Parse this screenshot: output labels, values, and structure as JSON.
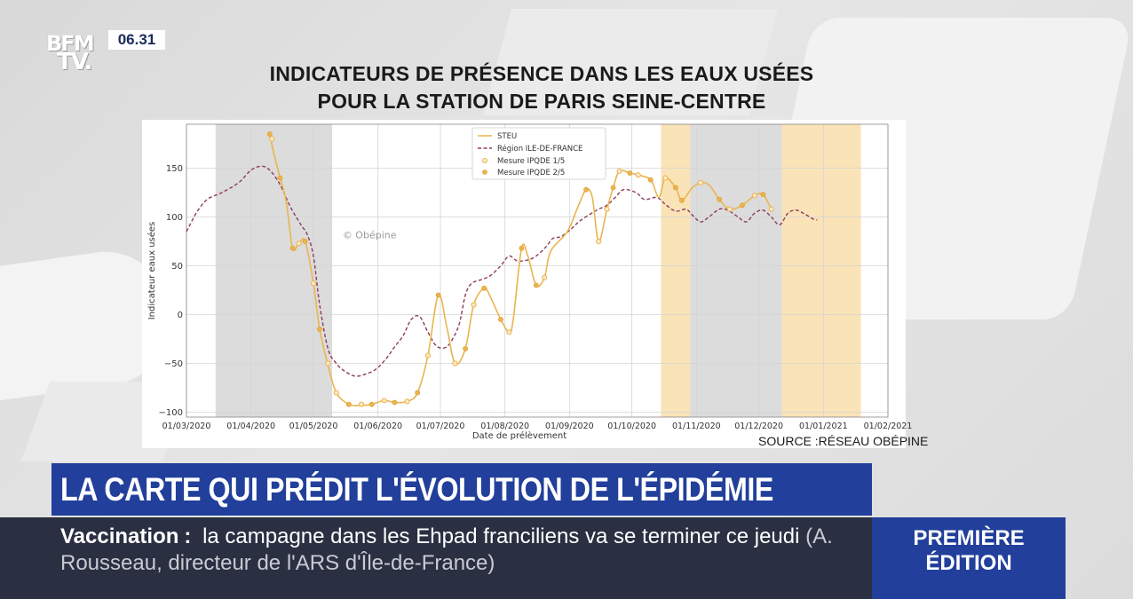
{
  "channel": {
    "logo_line1": "BFM",
    "logo_line2": "TV.",
    "time": "06.31"
  },
  "headline": {
    "line1": "INDICATEURS DE PRÉSENCE DANS LES EAUX USÉES",
    "line2": "POUR LA STATION DE PARIS SEINE-CENTRE"
  },
  "source": "SOURCE :RÉSEAU OBÉPINE",
  "banner": "LA CARTE QUI PRÉDIT L'ÉVOLUTION DE L'ÉPIDÉMIE",
  "ticker": {
    "keyword": "Vaccination",
    "separator": ":",
    "text": "la campagne dans les Ehpad franciliens va se terminer ce jeudi",
    "attribution": "(A. Rousseau, directeur de l'ARS d'Île-de-France)"
  },
  "edition": {
    "line1": "PREMIÈRE",
    "line2": "ÉDITION"
  },
  "colors": {
    "steu": "#eab54f",
    "region": "#8e3b5e",
    "grey_band": "#dcdcdc",
    "orange_band": "#fbe3b8",
    "banner": "#213f9b",
    "ticker": "#2a2f42"
  },
  "chart_data": {
    "type": "line",
    "title": "",
    "xlabel": "Date de prélèvement",
    "ylabel": "Indicateur eaux usées",
    "watermark": "© Obépine",
    "xlim": [
      0,
      337
    ],
    "ylim": [
      -105,
      195
    ],
    "xticks": [
      {
        "label": "01/03/2020",
        "day": 0
      },
      {
        "label": "01/04/2020",
        "day": 31
      },
      {
        "label": "01/05/2020",
        "day": 61
      },
      {
        "label": "01/06/2020",
        "day": 92
      },
      {
        "label": "01/07/2020",
        "day": 122
      },
      {
        "label": "01/08/2020",
        "day": 153
      },
      {
        "label": "01/09/2020",
        "day": 184
      },
      {
        "label": "01/10/2020",
        "day": 214
      },
      {
        "label": "01/11/2020",
        "day": 245
      },
      {
        "label": "01/12/2020",
        "day": 275
      },
      {
        "label": "01/01/2021",
        "day": 306
      },
      {
        "label": "01/02/2021",
        "day": 337
      }
    ],
    "yticks": [
      150,
      100,
      50,
      0,
      -50,
      -100
    ],
    "bands": [
      {
        "start": 14,
        "end": 70,
        "kind": "grey"
      },
      {
        "start": 228,
        "end": 242,
        "kind": "orange"
      },
      {
        "start": 242,
        "end": 286,
        "kind": "grey"
      },
      {
        "start": 286,
        "end": 324,
        "kind": "orange"
      }
    ],
    "legend": {
      "position": "top-center",
      "entries": [
        "STEU",
        "Région ILE-DE-FRANCE",
        "Mesure IPQDE 1/5",
        "Mesure IPQDE 2/5"
      ]
    },
    "series": [
      {
        "name": "STEU",
        "style": "solid",
        "points": [
          [
            40,
            185
          ],
          [
            42,
            165
          ],
          [
            45,
            140
          ],
          [
            48,
            115
          ],
          [
            51,
            68
          ],
          [
            54,
            73
          ],
          [
            57,
            75
          ],
          [
            61,
            32
          ],
          [
            64,
            -15
          ],
          [
            68,
            -52
          ],
          [
            72,
            -80
          ],
          [
            78,
            -92
          ],
          [
            84,
            -93
          ],
          [
            89,
            -92
          ],
          [
            95,
            -88
          ],
          [
            100,
            -90
          ],
          [
            106,
            -89
          ],
          [
            111,
            -80
          ],
          [
            116,
            -42
          ],
          [
            121,
            20
          ],
          [
            125,
            -12
          ],
          [
            129,
            -50
          ],
          [
            134,
            -35
          ],
          [
            138,
            10
          ],
          [
            143,
            27
          ],
          [
            146,
            18
          ],
          [
            151,
            -5
          ],
          [
            155,
            -18
          ],
          [
            157,
            -5
          ],
          [
            161,
            68
          ],
          [
            164,
            60
          ],
          [
            168,
            30
          ],
          [
            172,
            38
          ],
          [
            175,
            65
          ],
          [
            183,
            85
          ],
          [
            188,
            110
          ],
          [
            192,
            128
          ],
          [
            195,
            120
          ],
          [
            198,
            75
          ],
          [
            202,
            108
          ],
          [
            205,
            130
          ],
          [
            208,
            147
          ],
          [
            213,
            145
          ],
          [
            217,
            143
          ],
          [
            223,
            138
          ],
          [
            227,
            120
          ],
          [
            230,
            140
          ],
          [
            235,
            130
          ],
          [
            238,
            117
          ],
          [
            243,
            130
          ],
          [
            247,
            135
          ],
          [
            251,
            133
          ],
          [
            256,
            118
          ],
          [
            261,
            108
          ],
          [
            267,
            112
          ],
          [
            273,
            122
          ],
          [
            277,
            123
          ],
          [
            281,
            108
          ]
        ]
      },
      {
        "name": "Région ILE-DE-FRANCE",
        "style": "dashed",
        "points": [
          [
            0,
            85
          ],
          [
            5,
            105
          ],
          [
            10,
            118
          ],
          [
            17,
            125
          ],
          [
            25,
            135
          ],
          [
            31,
            148
          ],
          [
            36,
            152
          ],
          [
            40,
            148
          ],
          [
            45,
            133
          ],
          [
            50,
            110
          ],
          [
            55,
            92
          ],
          [
            58,
            82
          ],
          [
            61,
            60
          ],
          [
            64,
            10
          ],
          [
            68,
            -35
          ],
          [
            72,
            -50
          ],
          [
            76,
            -58
          ],
          [
            81,
            -63
          ],
          [
            86,
            -61
          ],
          [
            91,
            -56
          ],
          [
            96,
            -45
          ],
          [
            100,
            -33
          ],
          [
            104,
            -22
          ],
          [
            108,
            -5
          ],
          [
            112,
            -2
          ],
          [
            116,
            -18
          ],
          [
            120,
            -32
          ],
          [
            124,
            -34
          ],
          [
            127,
            -28
          ],
          [
            131,
            -10
          ],
          [
            134,
            20
          ],
          [
            137,
            32
          ],
          [
            142,
            36
          ],
          [
            146,
            40
          ],
          [
            151,
            50
          ],
          [
            155,
            60
          ],
          [
            159,
            55
          ],
          [
            164,
            56
          ],
          [
            168,
            60
          ],
          [
            173,
            70
          ],
          [
            176,
            78
          ],
          [
            180,
            80
          ],
          [
            185,
            88
          ],
          [
            189,
            96
          ],
          [
            194,
            103
          ],
          [
            198,
            108
          ],
          [
            202,
            112
          ],
          [
            206,
            120
          ],
          [
            210,
            128
          ],
          [
            216,
            125
          ],
          [
            220,
            118
          ],
          [
            226,
            120
          ],
          [
            230,
            113
          ],
          [
            235,
            106
          ],
          [
            240,
            108
          ],
          [
            243,
            102
          ],
          [
            247,
            95
          ],
          [
            251,
            100
          ],
          [
            256,
            108
          ],
          [
            260,
            107
          ],
          [
            265,
            100
          ],
          [
            269,
            95
          ],
          [
            273,
            104
          ],
          [
            277,
            107
          ],
          [
            281,
            100
          ],
          [
            285,
            92
          ],
          [
            289,
            104
          ],
          [
            293,
            107
          ],
          [
            297,
            103
          ],
          [
            301,
            98
          ],
          [
            303,
            97
          ]
        ]
      }
    ],
    "markers": [
      {
        "name": "Mesure IPQDE 1/5",
        "points": [
          [
            41,
            180
          ],
          [
            54,
            73
          ],
          [
            61,
            32
          ],
          [
            68,
            -50
          ],
          [
            72,
            -80
          ],
          [
            84,
            -92
          ],
          [
            95,
            -88
          ],
          [
            106,
            -89
          ],
          [
            116,
            -42
          ],
          [
            129,
            -50
          ],
          [
            138,
            10
          ],
          [
            155,
            -18
          ],
          [
            172,
            38
          ],
          [
            198,
            75
          ],
          [
            202,
            108
          ],
          [
            208,
            147
          ],
          [
            217,
            143
          ],
          [
            230,
            140
          ],
          [
            247,
            135
          ],
          [
            261,
            108
          ],
          [
            273,
            122
          ],
          [
            281,
            108
          ]
        ]
      },
      {
        "name": "Mesure IPQDE 2/5",
        "points": [
          [
            40,
            185
          ],
          [
            45,
            140
          ],
          [
            51,
            68
          ],
          [
            57,
            75
          ],
          [
            64,
            -15
          ],
          [
            78,
            -92
          ],
          [
            89,
            -92
          ],
          [
            100,
            -90
          ],
          [
            111,
            -80
          ],
          [
            121,
            20
          ],
          [
            134,
            -35
          ],
          [
            143,
            27
          ],
          [
            151,
            -5
          ],
          [
            161,
            68
          ],
          [
            168,
            30
          ],
          [
            192,
            128
          ],
          [
            205,
            130
          ],
          [
            213,
            145
          ],
          [
            223,
            138
          ],
          [
            235,
            130
          ],
          [
            238,
            117
          ],
          [
            256,
            118
          ],
          [
            267,
            112
          ],
          [
            277,
            123
          ]
        ]
      }
    ]
  }
}
